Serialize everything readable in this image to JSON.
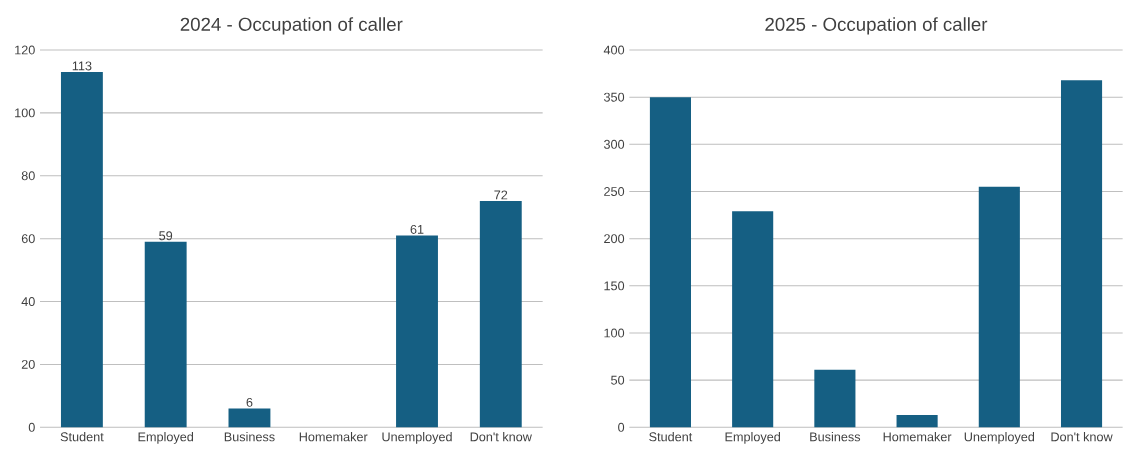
{
  "chart_data": [
    {
      "type": "bar",
      "title": "2024 - Occupation of caller",
      "categories": [
        "Student",
        "Employed",
        "Business",
        "Homemaker",
        "Unemployed",
        "Don't know"
      ],
      "values": [
        113,
        59,
        6,
        null,
        61,
        72
      ],
      "value_labels": [
        "113",
        "59",
        "6",
        null,
        "61",
        "72"
      ],
      "color": "#155f83",
      "ylim": [
        0,
        120
      ],
      "yticks": [
        0,
        20,
        40,
        60,
        80,
        100,
        120
      ],
      "grid": "y"
    },
    {
      "type": "bar",
      "title": "2025 - Occupation of caller",
      "categories": [
        "Student",
        "Employed",
        "Business",
        "Homemaker",
        "Unemployed",
        "Don't know"
      ],
      "values": [
        350,
        229,
        61,
        13,
        255,
        368
      ],
      "color": "#155f83",
      "ylim": [
        0,
        400
      ],
      "yticks": [
        0,
        50,
        100,
        150,
        200,
        250,
        300,
        350,
        400
      ],
      "grid": "y"
    }
  ]
}
